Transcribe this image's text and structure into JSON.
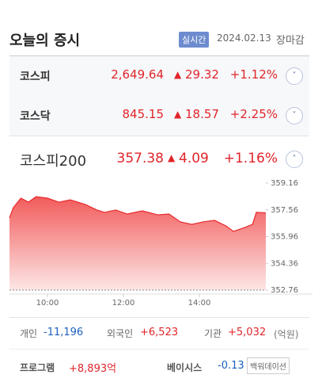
{
  "header": {
    "title": "오늘의 증시",
    "badge": "실시간",
    "date": "2024.02.13",
    "status": "장마감"
  },
  "indices": [
    {
      "name": "코스피",
      "price": "2,649.64",
      "change": "29.32",
      "rate": "+1.12%"
    },
    {
      "name": "코스닥",
      "price": "845.15",
      "change": "18.57",
      "rate": "+2.25%"
    },
    {
      "name": "코스피200",
      "price": "357.38",
      "change": "4.09",
      "rate": "+1.16%"
    }
  ],
  "intraday_chart": {
    "type": "line",
    "color": "#e8282b",
    "x": [
      9.0,
      9.1,
      9.3,
      9.5,
      9.7,
      10.0,
      10.3,
      10.6,
      11.0,
      11.3,
      11.5,
      11.8,
      12.1,
      12.5,
      12.9,
      13.2,
      13.5,
      13.8,
      14.1,
      14.4,
      14.7,
      14.9,
      15.2,
      15.4,
      15.5,
      15.75
    ],
    "values": [
      357.07,
      357.69,
      358.26,
      358.02,
      358.35,
      358.26,
      358.02,
      358.16,
      357.88,
      357.55,
      357.41,
      357.55,
      357.31,
      357.5,
      357.26,
      357.31,
      356.84,
      356.69,
      356.84,
      356.93,
      356.6,
      356.27,
      356.51,
      356.69,
      357.41,
      357.38
    ],
    "xlim": [
      9,
      15.75
    ],
    "ylim": [
      352.76,
      359.16
    ],
    "xticks": [
      {
        "value": 10,
        "label": "10:00"
      },
      {
        "value": 12,
        "label": "12:00"
      },
      {
        "value": 14,
        "label": "14:00"
      }
    ],
    "yticks": [
      359.16,
      357.56,
      355.96,
      354.36,
      352.76
    ]
  },
  "investors": [
    {
      "name": "개인",
      "value": "-11,196"
    },
    {
      "name": "외국인",
      "value": "+6,523"
    },
    {
      "name": "기관",
      "value": "+5,032"
    }
  ],
  "unit": "(억원)",
  "program": {
    "label": "프로그램",
    "value": "+8,893억"
  },
  "basis": {
    "label": "베이시스",
    "value": "-0.13",
    "tag": "백워데이션"
  }
}
